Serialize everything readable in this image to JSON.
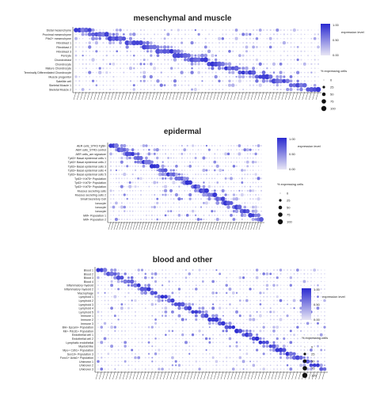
{
  "chart_data": [
    {
      "type": "dotplot",
      "title": "mesenchymal and muscle",
      "rows": [
        "Distal mesenchyme",
        "Proximal mesenchyme",
        "Pitx2+ mesenchyme",
        "Fibroblast 1",
        "Fibroblast 2",
        "Fibroblast 3",
        "Pericyte",
        "Chondroblast",
        "Chondrocyte",
        "Mature Chondrocyte",
        "Terminally Differentiated Chondrocyte",
        "Muscle progenitor",
        "Satellite cell",
        "Skeletal Muscle 1",
        "Skeletal Muscle 2"
      ],
      "n_markers": 72,
      "legend_expression": {
        "title": "expression level",
        "ticks": [
          "1.00",
          "0.50",
          "0.00"
        ],
        "low_color": "#e8e6f5",
        "high_color": "#2a2ad0"
      },
      "legend_percent": {
        "title": "% expressing cells",
        "ticks": [
          "0",
          "25",
          "50",
          "75",
          "100"
        ]
      }
    },
    {
      "type": "dotplot",
      "title": "epidermal",
      "rows": [
        "AER cells_STR3 Fgf8+",
        "AER cells_STR3 control",
        "AER cells_aer signature",
        "Tp63+ Basal epidermal cells 1",
        "Tp63+ Basal epidermal cells 2",
        "Tp63+ Basal epidermal cells 3",
        "Tp63+ Basal epidermal cells 4",
        "Tp63+ Basal epidermal cells 5",
        "Tp63+ Krt75+ Population",
        "Tp63+ Krt75+ Population",
        "Tp63+ Krt75+ Population",
        "Mucous secreting cells",
        "Mucous secreting cells 2",
        "Small Secretory Cell",
        "Ionocyte",
        "Ionocyte",
        "Ionocyte",
        "Mitf+ Population 1",
        "Mitf+ Population 2"
      ],
      "n_markers": 56,
      "legend_expression": {
        "title": "expression level",
        "ticks": [
          "1.00",
          "0.50",
          "0.00"
        ],
        "low_color": "#e8e6f5",
        "high_color": "#2a2ad0"
      },
      "legend_percent": {
        "title": "% expressing cells",
        "ticks": [
          "0",
          "25",
          "50",
          "75",
          "100"
        ]
      }
    },
    {
      "type": "dotplot",
      "title": "blood and other",
      "rows": [
        "Blood 1",
        "Blood 2",
        "Blood 3",
        "Blood 4",
        "Inflammatory myeloid",
        "Inflammatory myeloid 2",
        "Macrophage",
        "Lymphoid 1",
        "Lymphoid 2",
        "Lymphoid 3",
        "Lymphoid 4",
        "Lymphoid 5",
        "Immune 1",
        "Immune 2",
        "Immune 3",
        "Bik+ Epcam+ Population",
        "Mir+ Pdcd1+ Population",
        "Endothelial cell 1",
        "Endothelial cell 2",
        "Lymphatic endothelial",
        "Myeloid like",
        "Mpo+ Cdh1+ Population",
        "Sox10+ Population 3",
        "Foxc1+ Acta1+ Population",
        "Unknown 1",
        "Unknown 2",
        "Unknown 3"
      ],
      "n_markers": 68,
      "legend_expression": {
        "title": "expression level",
        "ticks": [
          "1.00",
          "0.50",
          "0.00"
        ],
        "low_color": "#e8e6f5",
        "high_color": "#2a2ad0"
      },
      "legend_percent": {
        "title": "% expressing cells",
        "ticks": [
          "0",
          "25",
          "50",
          "75",
          "100"
        ]
      }
    }
  ]
}
